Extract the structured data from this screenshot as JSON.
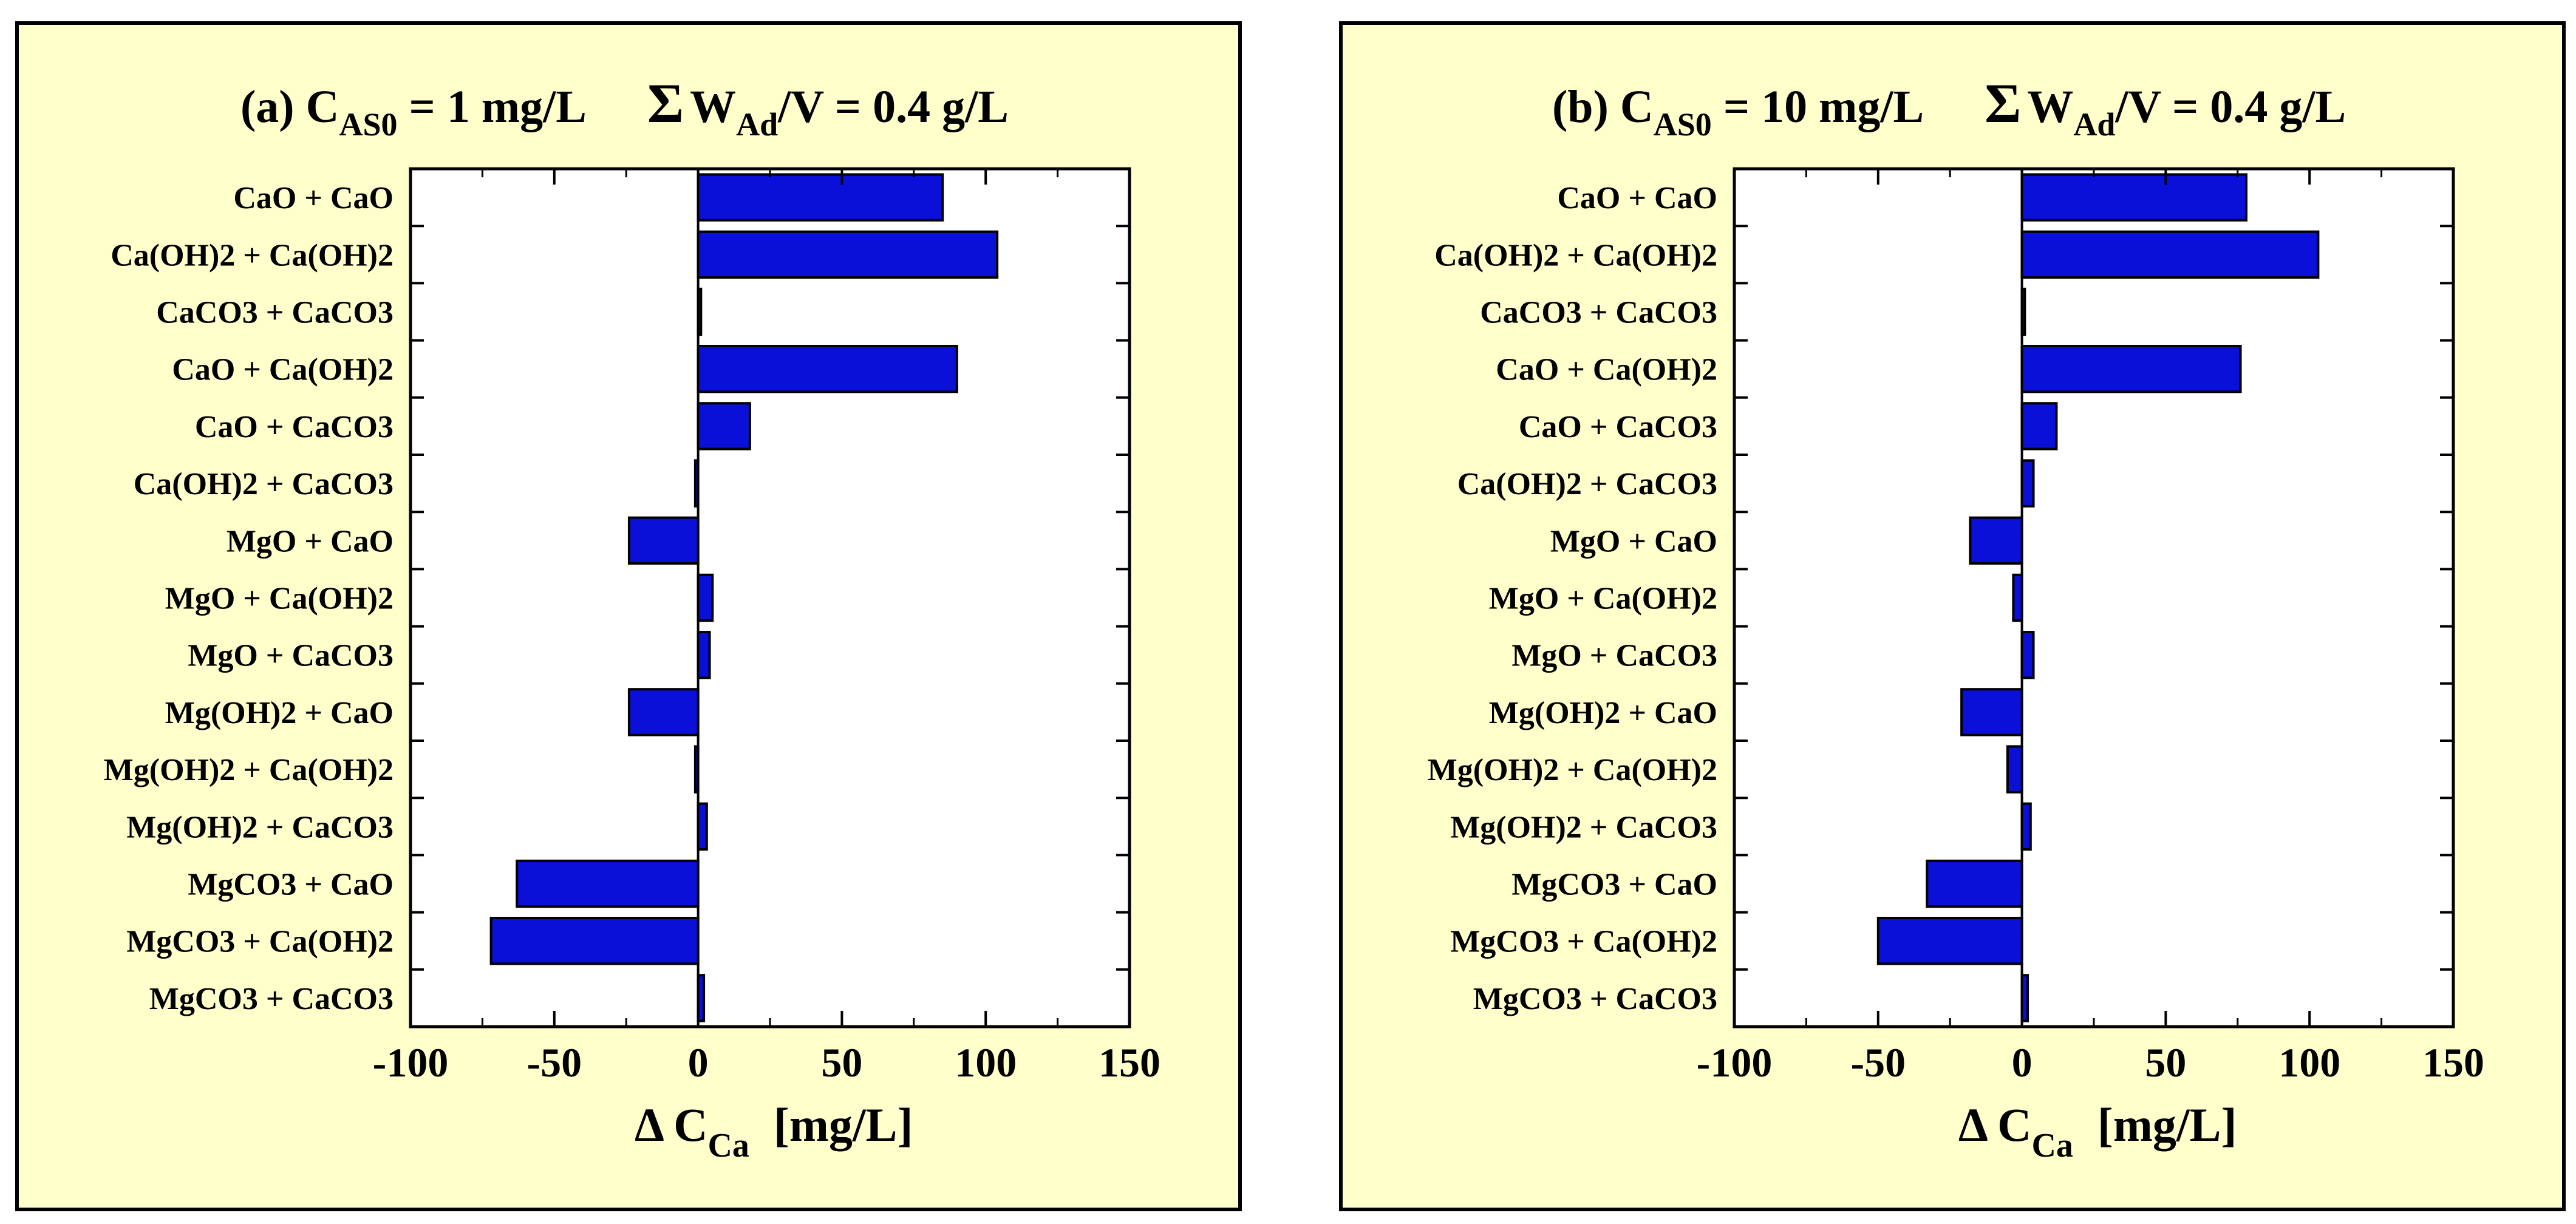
{
  "chart_data": [
    {
      "type": "bar",
      "orientation": "horizontal",
      "title": {
        "prefix": "(a) C",
        "cas_subscript": "AS0",
        "cas_value": " = 1 mg/L",
        "sigma": "Σ",
        "w_label": "W",
        "w_subscript": "Ad",
        "w_value": "/V =  0.4 g/L"
      },
      "xlabel": {
        "main": "Δ C",
        "subscript": "Ca",
        "unit": "[mg/L]"
      },
      "xlim": [
        -100,
        150
      ],
      "xticks": [
        -100,
        -50,
        0,
        50,
        100,
        150
      ],
      "categories": [
        "CaO + CaO",
        "Ca(OH)2 + Ca(OH)2",
        "CaCO3 + CaCO3",
        "CaO + Ca(OH)2",
        "CaO + CaCO3",
        "Ca(OH)2 + CaCO3",
        "MgO + CaO",
        "MgO + Ca(OH)2",
        "MgO + CaCO3",
        "Mg(OH)2 + CaO",
        "Mg(OH)2 + Ca(OH)2",
        "Mg(OH)2 + CaCO3",
        "MgCO3 + CaO",
        "MgCO3 + Ca(OH)2",
        "MgCO3 + CaCO3"
      ],
      "values": [
        85,
        104,
        1,
        90,
        18,
        -1,
        -24,
        5,
        4,
        -24,
        -1,
        3,
        -63,
        -72,
        2
      ],
      "bar_color": "#0a10d8"
    },
    {
      "type": "bar",
      "orientation": "horizontal",
      "title": {
        "prefix": "(b) C",
        "cas_subscript": "AS0",
        "cas_value": " = 10 mg/L",
        "sigma": "Σ",
        "w_label": "W",
        "w_subscript": "Ad",
        "w_value": "/V =  0.4 g/L"
      },
      "xlabel": {
        "main": "Δ C",
        "subscript": "Ca",
        "unit": "[mg/L]"
      },
      "xlim": [
        -100,
        150
      ],
      "xticks": [
        -100,
        -50,
        0,
        50,
        100,
        150
      ],
      "categories": [
        "CaO + CaO",
        "Ca(OH)2 + Ca(OH)2",
        "CaCO3 + CaCO3",
        "CaO + Ca(OH)2",
        "CaO + CaCO3",
        "Ca(OH)2 + CaCO3",
        "MgO + CaO",
        "MgO + Ca(OH)2",
        "MgO + CaCO3",
        "Mg(OH)2 + CaO",
        "Mg(OH)2 + Ca(OH)2",
        "Mg(OH)2 + CaCO3",
        "MgCO3 + CaO",
        "MgCO3 + Ca(OH)2",
        "MgCO3 + CaCO3"
      ],
      "values": [
        78,
        103,
        1,
        76,
        12,
        4,
        -18,
        -3,
        4,
        -21,
        -5,
        3,
        -33,
        -50,
        2
      ],
      "bar_color": "#0a10d8"
    }
  ]
}
